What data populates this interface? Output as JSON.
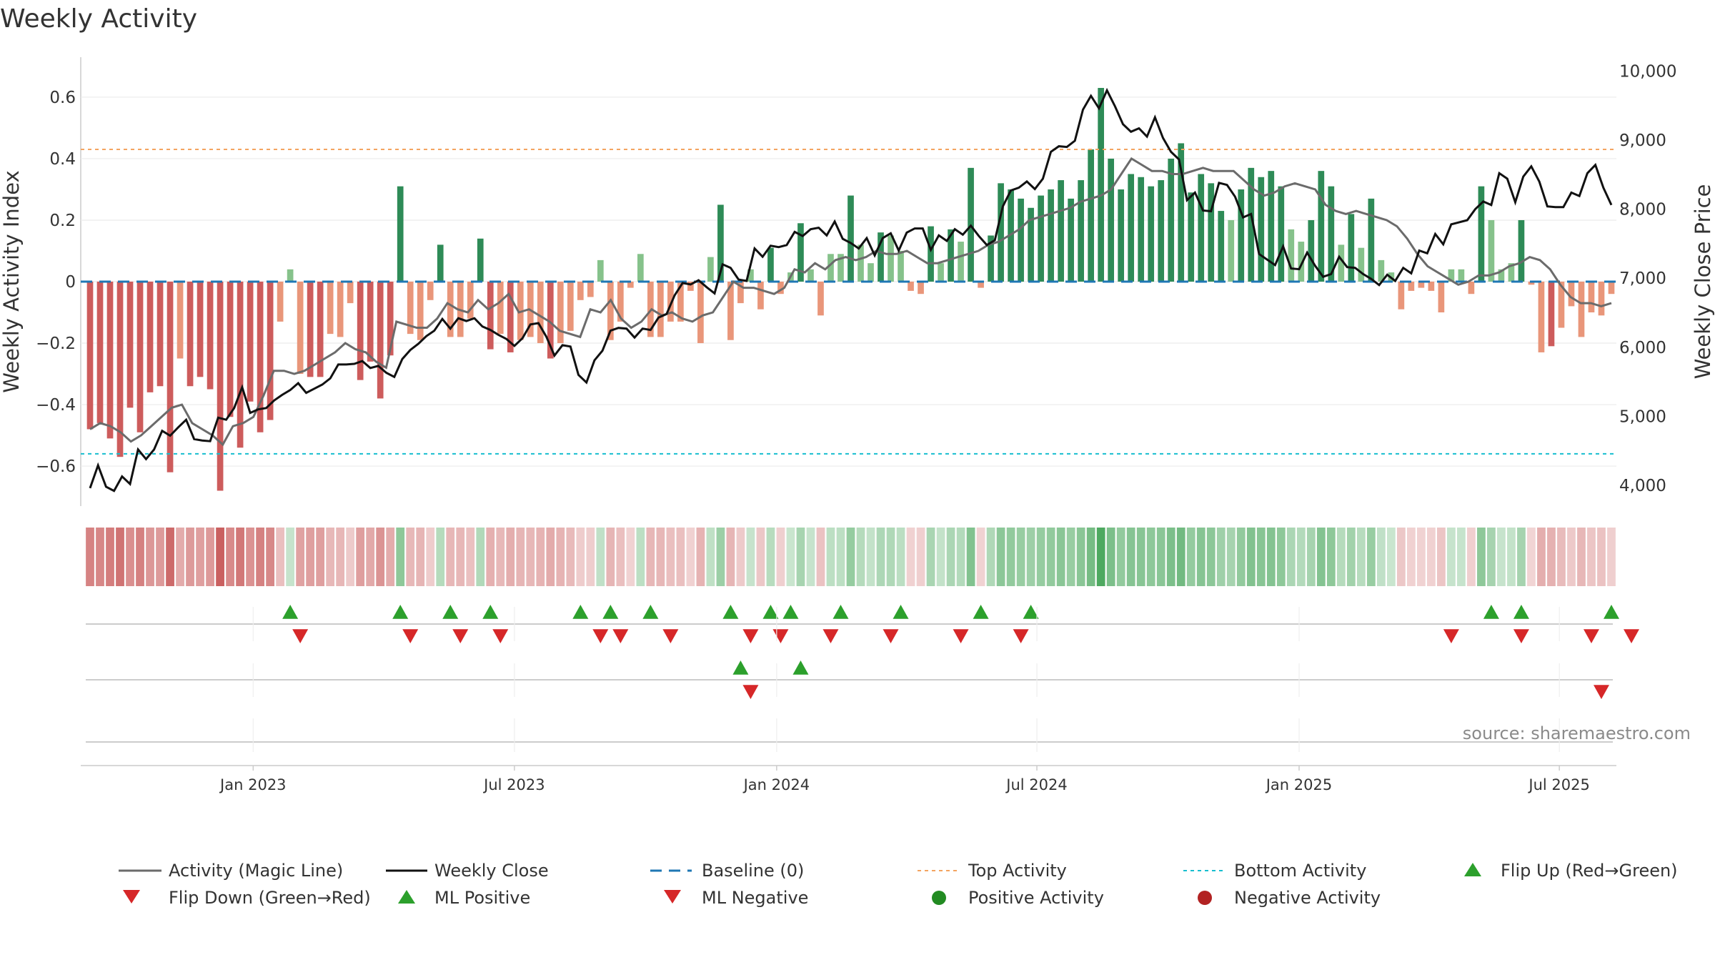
{
  "chart_data": {
    "type": "bar",
    "title": "Weekly Activity",
    "ylabel": "Weekly Activity Index",
    "y2label": "Weekly Close Price",
    "ylim": [
      -0.73,
      0.73
    ],
    "y2lim": [
      3700,
      10200
    ],
    "yticks": [
      0.6,
      0.4,
      0.2,
      0,
      -0.2,
      -0.4,
      -0.6
    ],
    "ytick_labels": [
      "0.6",
      "0.4",
      "0.2",
      "0",
      "−0.2",
      "−0.4",
      "−0.6"
    ],
    "y2ticks": [
      10000,
      9000,
      8000,
      7000,
      6000,
      5000,
      4000
    ],
    "y2tick_labels": [
      "10,000",
      "9,000",
      "8,000",
      "7,000",
      "6,000",
      "5,000",
      "4,000"
    ],
    "xtick_labels": [
      "Jan 2023",
      "Jul 2023",
      "Jan 2024",
      "Jul 2024",
      "Jan 2025",
      "Jul 2025"
    ],
    "xtick_weeks": [
      16.3,
      42.4,
      68.6,
      94.6,
      120.8,
      146.8
    ],
    "top_activity": 0.43,
    "bottom_activity": -0.56,
    "baseline": 0,
    "colors": {
      "pos_strong": "#2e8b57",
      "pos_weak": "#86c28b",
      "neg_strong": "#cd5c5c",
      "neg_weak": "#e9967a",
      "magic_line": "#6b6b6b",
      "close_line": "#111111",
      "baseline": "#1f77b4",
      "top": "#f4a460",
      "bottom": "#17becf",
      "flip_up": "#2ca02c",
      "flip_down": "#d62728",
      "pos_dot": "#228b22",
      "neg_dot": "#b22222"
    },
    "activity": [
      -0.48,
      -0.46,
      -0.51,
      -0.57,
      -0.41,
      -0.49,
      -0.36,
      -0.34,
      -0.62,
      -0.25,
      -0.34,
      -0.31,
      -0.35,
      -0.68,
      -0.44,
      -0.54,
      -0.39,
      -0.49,
      -0.45,
      -0.13,
      0.04,
      -0.3,
      -0.31,
      -0.31,
      -0.17,
      -0.18,
      -0.07,
      -0.32,
      -0.26,
      -0.38,
      -0.24,
      0.31,
      -0.17,
      -0.19,
      -0.06,
      0.12,
      -0.18,
      -0.18,
      -0.12,
      0.14,
      -0.22,
      -0.17,
      -0.23,
      -0.19,
      -0.18,
      -0.2,
      -0.25,
      -0.2,
      -0.16,
      -0.06,
      -0.05,
      0.07,
      -0.19,
      -0.13,
      -0.02,
      0.09,
      -0.18,
      -0.18,
      -0.13,
      -0.13,
      -0.03,
      -0.2,
      0.08,
      0.25,
      -0.19,
      -0.07,
      0.04,
      -0.09,
      0.11,
      -0.04,
      0.03,
      0.19,
      0.04,
      -0.11,
      0.09,
      0.09,
      0.28,
      0.12,
      0.06,
      0.16,
      0.15,
      0.1,
      -0.03,
      -0.04,
      0.18,
      0.06,
      0.17,
      0.13,
      0.37,
      -0.02,
      0.15,
      0.32,
      0.3,
      0.27,
      0.24,
      0.28,
      0.3,
      0.33,
      0.27,
      0.33,
      0.43,
      0.63,
      0.4,
      0.3,
      0.35,
      0.34,
      0.31,
      0.33,
      0.4,
      0.45,
      0.29,
      0.35,
      0.32,
      0.23,
      0.2,
      0.3,
      0.37,
      0.34,
      0.36,
      0.31,
      0.17,
      0.13,
      0.2,
      0.36,
      0.31,
      0.12,
      0.22,
      0.11,
      0.27,
      0.07,
      0.03,
      -0.09,
      -0.03,
      -0.02,
      -0.03,
      -0.1,
      0.04,
      0.04,
      -0.04,
      0.31,
      0.2,
      0.04,
      0.06,
      0.2,
      -0.01,
      -0.23,
      -0.21,
      -0.15,
      -0.08,
      -0.18,
      -0.1,
      -0.11,
      -0.04
    ],
    "magic_line": [
      -0.48,
      -0.46,
      -0.47,
      -0.49,
      -0.52,
      -0.5,
      -0.47,
      -0.44,
      -0.41,
      -0.4,
      -0.46,
      -0.48,
      -0.5,
      -0.53,
      -0.47,
      -0.46,
      -0.44,
      -0.37,
      -0.29,
      -0.29,
      -0.3,
      -0.29,
      -0.27,
      -0.25,
      -0.23,
      -0.2,
      -0.22,
      -0.23,
      -0.26,
      -0.28,
      -0.13,
      -0.14,
      -0.15,
      -0.15,
      -0.12,
      -0.07,
      -0.09,
      -0.1,
      -0.06,
      -0.09,
      -0.07,
      -0.04,
      -0.1,
      -0.09,
      -0.11,
      -0.13,
      -0.16,
      -0.17,
      -0.18,
      -0.09,
      -0.1,
      -0.06,
      -0.12,
      -0.15,
      -0.13,
      -0.09,
      -0.11,
      -0.1,
      -0.12,
      -0.13,
      -0.11,
      -0.1,
      -0.05,
      0,
      -0.02,
      -0.02,
      -0.03,
      -0.04,
      -0.02,
      0.04,
      0.03,
      0.06,
      0.04,
      0.07,
      0.08,
      0.07,
      0.08,
      0.1,
      0.09,
      0.09,
      0.1,
      0.08,
      0.06,
      0.06,
      0.07,
      0.08,
      0.09,
      0.1,
      0.12,
      0.13,
      0.15,
      0.17,
      0.2,
      0.21,
      0.22,
      0.23,
      0.24,
      0.26,
      0.27,
      0.28,
      0.3,
      0.35,
      0.4,
      0.38,
      0.36,
      0.36,
      0.35,
      0.35,
      0.36,
      0.37,
      0.36,
      0.36,
      0.36,
      0.33,
      0.3,
      0.28,
      0.29,
      0.31,
      0.32,
      0.31,
      0.3,
      0.25,
      0.23,
      0.22,
      0.23,
      0.22,
      0.21,
      0.2,
      0.18,
      0.14,
      0.09,
      0.05,
      0.03,
      0.01,
      -0.01,
      0,
      0.02,
      0.02,
      0.03,
      0.05,
      0.06,
      0.08,
      0.07,
      0.04,
      -0.01,
      -0.05,
      -0.07,
      -0.07,
      -0.08,
      -0.07
    ],
    "weekly_close": [
      3960,
      4290,
      3980,
      3920,
      4130,
      4020,
      4520,
      4380,
      4520,
      4790,
      4720,
      4840,
      4950,
      4670,
      4650,
      4640,
      4980,
      4950,
      5120,
      5420,
      5050,
      5100,
      5120,
      5230,
      5310,
      5380,
      5480,
      5340,
      5400,
      5460,
      5550,
      5750,
      5750,
      5760,
      5800,
      5700,
      5730,
      5630,
      5570,
      5830,
      5960,
      6050,
      6160,
      6240,
      6410,
      6270,
      6420,
      6380,
      6420,
      6300,
      6250,
      6180,
      6120,
      6020,
      6130,
      6330,
      6350,
      6150,
      5880,
      6030,
      6010,
      5600,
      5490,
      5810,
      5950,
      6240,
      6280,
      6270,
      6140,
      6270,
      6250,
      6430,
      6480,
      6750,
      6930,
      6910,
      6970,
      6870,
      6780,
      7200,
      7150,
      6980,
      6960,
      7430,
      7310,
      7470,
      7450,
      7480,
      7670,
      7610,
      7710,
      7730,
      7620,
      7820,
      7570,
      7510,
      7430,
      7580,
      7330,
      7580,
      7650,
      7400,
      7660,
      7720,
      7720,
      7410,
      7620,
      7540,
      7710,
      7630,
      7760,
      7610,
      7480,
      7550,
      8040,
      8270,
      8310,
      8400,
      8290,
      8440,
      8830,
      8910,
      8900,
      8990,
      9440,
      9640,
      9460,
      9720,
      9490,
      9230,
      9120,
      9170,
      9050,
      9330,
      9030,
      8830,
      8720,
      8130,
      8240,
      7980,
      7970,
      8380,
      8350,
      8180,
      7880,
      7930,
      7350,
      7270,
      7190,
      7460,
      7140,
      7130,
      7370,
      7180,
      7020,
      7060,
      7310,
      7160,
      7150,
      7060,
      6990,
      6900,
      7050,
      6960,
      7150,
      7070,
      7400,
      7360,
      7640,
      7490,
      7780,
      7810,
      7840,
      8000,
      8110,
      8060,
      8520,
      8440,
      8100,
      8470,
      8620,
      8400,
      8040,
      8030,
      8030,
      8240,
      8190,
      8520,
      8640,
      8310,
      8060
    ]
  },
  "strips": {
    "flips_up_weeks": [
      20,
      31,
      36,
      40,
      49,
      52,
      56,
      64,
      68,
      70,
      75,
      81,
      89,
      94,
      140,
      143,
      152
    ],
    "flips_down_weeks": [
      21,
      32,
      37,
      41,
      51,
      53,
      58,
      66,
      69,
      74,
      80,
      87,
      93,
      136,
      143,
      150,
      154
    ],
    "ml_positive_weeks": [
      65,
      71
    ],
    "ml_negative_weeks": [
      66,
      151
    ]
  },
  "source": "source: sharemaestro.com",
  "legend": {
    "magic_line": "Activity (Magic Line)",
    "weekly_close": "Weekly Close",
    "baseline": "Baseline (0)",
    "top": "Top Activity",
    "bottom": "Bottom Activity",
    "flip_up": "Flip Up (Red→Green)",
    "flip_down": "Flip Down (Green→Red)",
    "ml_positive": "ML Positive",
    "ml_negative": "ML Negative",
    "pos_activity": "Positive Activity",
    "neg_activity": "Negative Activity"
  }
}
